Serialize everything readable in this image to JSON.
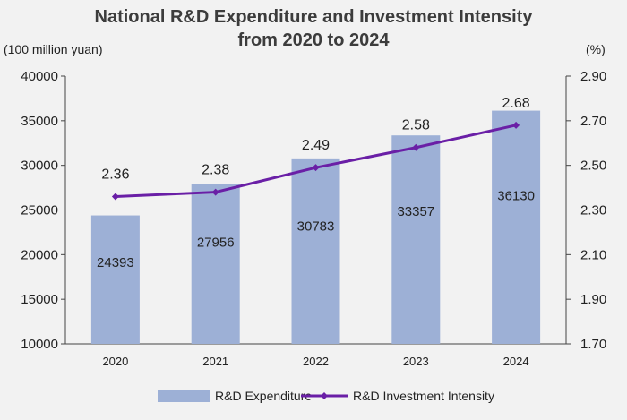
{
  "chart_data": {
    "type": "bar",
    "title_line1": "National R&D Expenditure and Investment Intensity",
    "title_line2": "from 2020 to 2024",
    "left_unit": "(100 million yuan)",
    "right_unit": "(%)",
    "categories": [
      "2020",
      "2021",
      "2022",
      "2023",
      "2024"
    ],
    "series": [
      {
        "name": "R&D Expenditure",
        "type": "bar",
        "axis": "left",
        "color": "#9db0d6",
        "values": [
          24393,
          27956,
          30783,
          33357,
          36130
        ]
      },
      {
        "name": "R&D Investment Intensity",
        "type": "line",
        "axis": "right",
        "color": "#6a1fa6",
        "values": [
          2.36,
          2.38,
          2.49,
          2.58,
          2.68
        ],
        "labels": [
          "2.36",
          "2.38",
          "2.49",
          "2.58",
          "2.68"
        ]
      }
    ],
    "left_axis": {
      "ylim": [
        10000,
        40000
      ],
      "ticks": [
        "10000",
        "15000",
        "20000",
        "25000",
        "30000",
        "35000",
        "40000"
      ]
    },
    "right_axis": {
      "ylim": [
        1.7,
        2.9
      ],
      "ticks": [
        "1.70",
        "1.90",
        "2.10",
        "2.30",
        "2.50",
        "2.70",
        "2.90"
      ]
    },
    "grid": false,
    "legend_position": "bottom"
  }
}
